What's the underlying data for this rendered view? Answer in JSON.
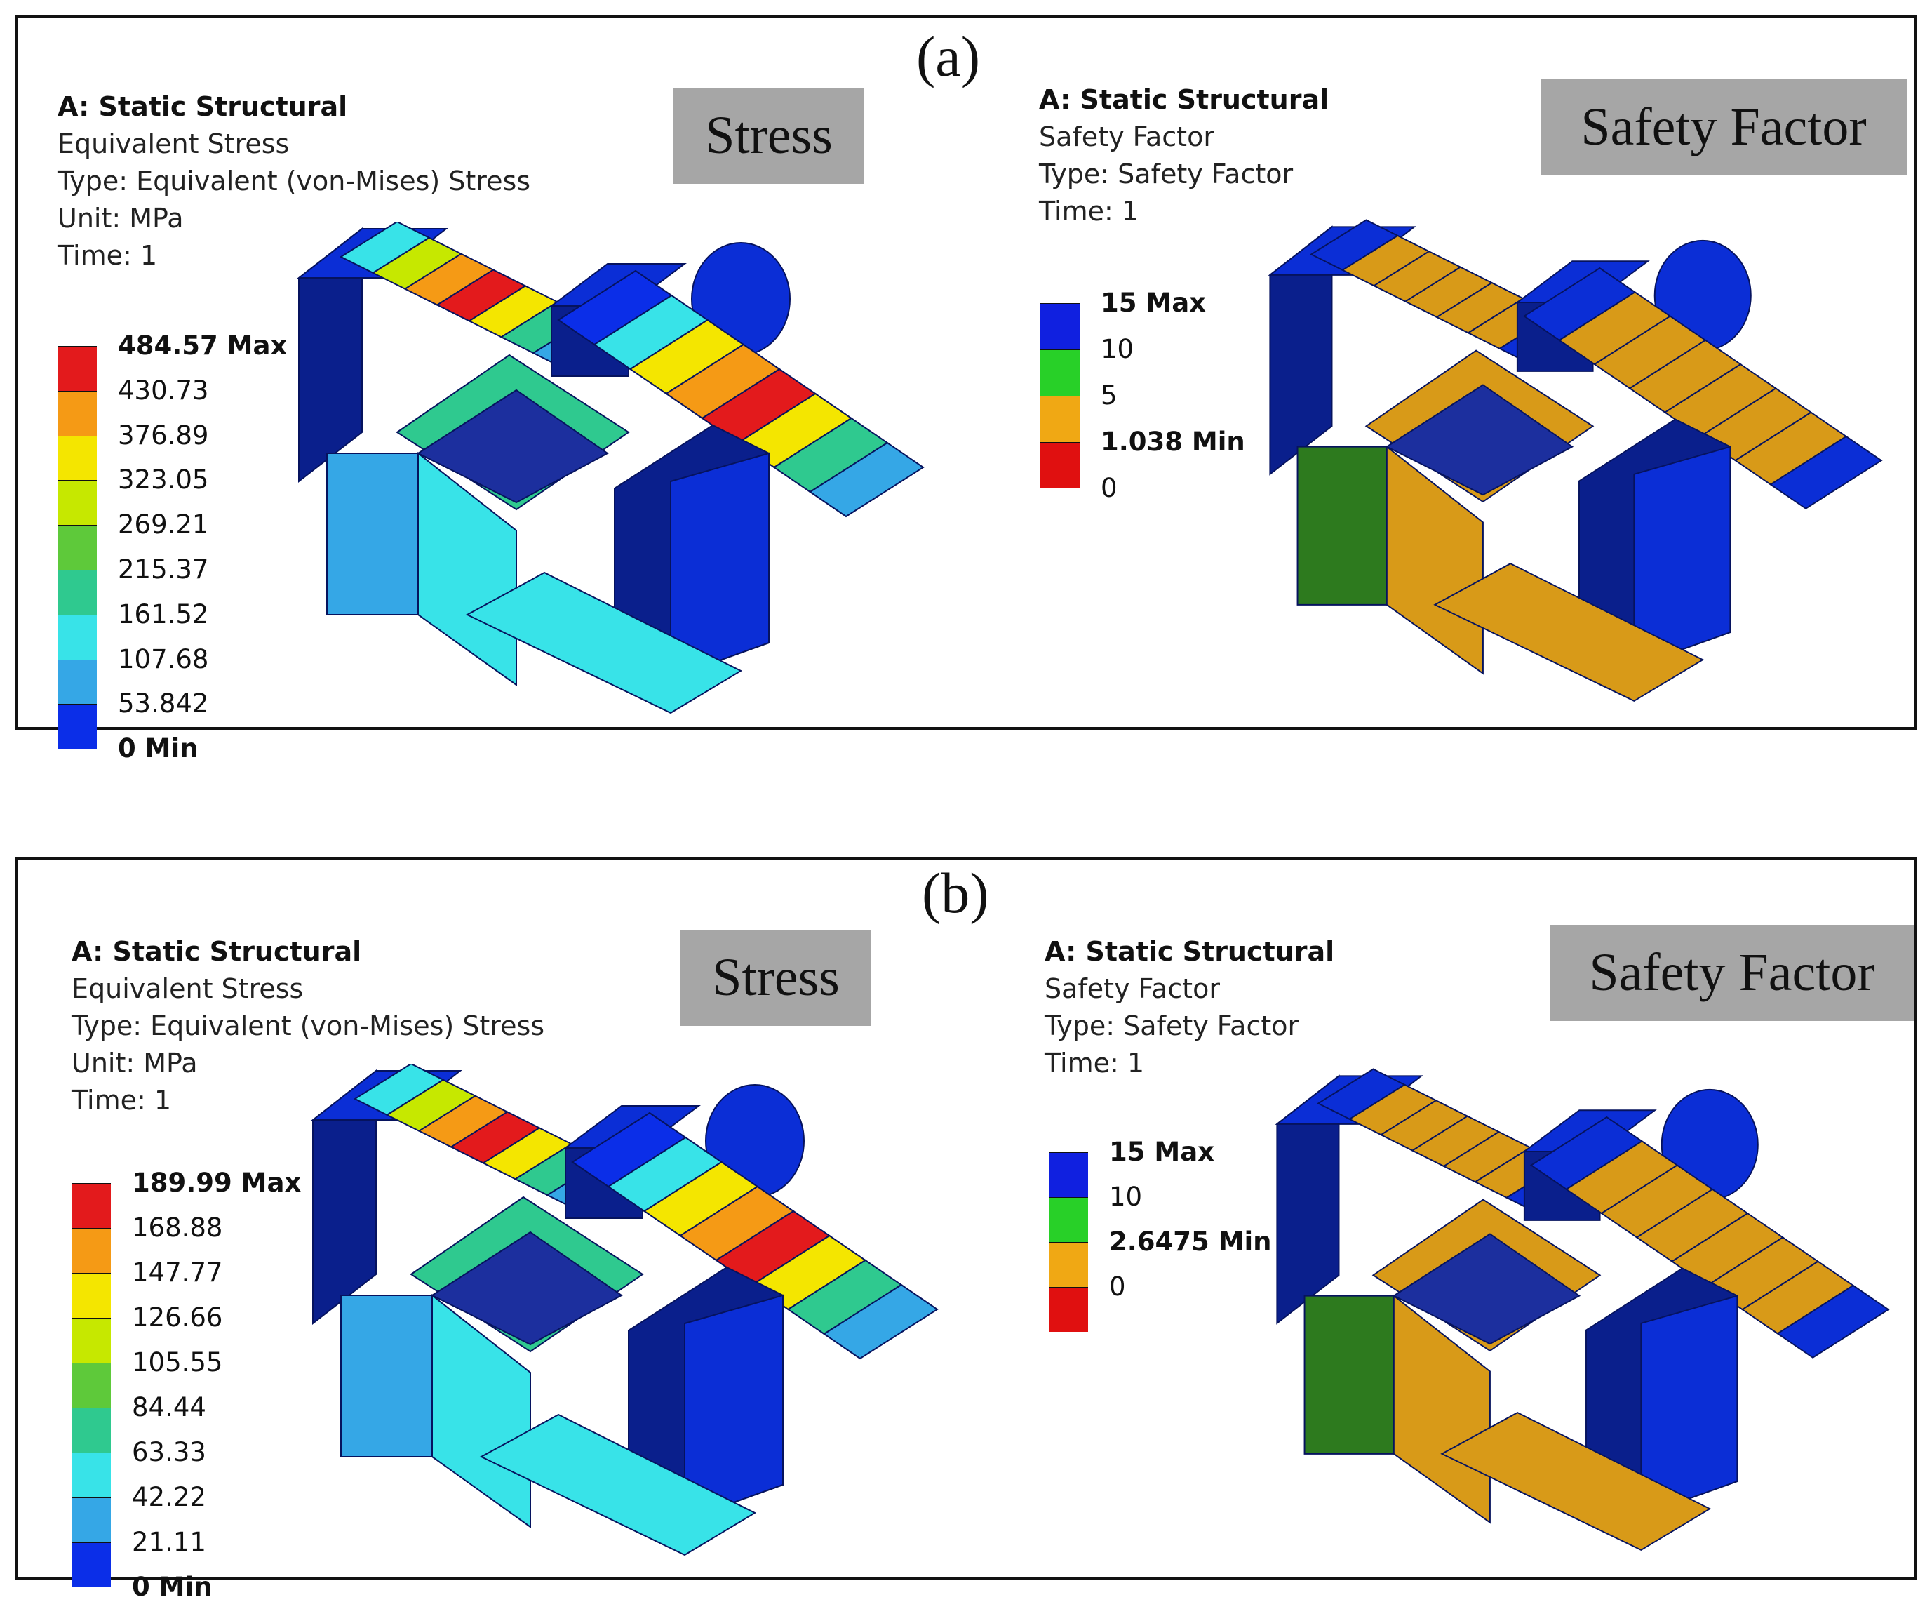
{
  "panels": [
    {
      "label": "(a)",
      "left": {
        "info": [
          "A: Static Structural",
          "Equivalent Stress",
          "Type: Equivalent (von-Mises) Stress",
          "Unit: MPa",
          "Time: 1"
        ],
        "badge": "Stress",
        "legend": [
          "484.57 Max",
          "430.73",
          "376.89",
          "323.05",
          "269.21",
          "215.37",
          "161.52",
          "107.68",
          "53.842",
          "0 Min"
        ]
      },
      "right": {
        "info": [
          "A: Static Structural",
          "Safety Factor",
          "Type: Safety Factor",
          "Time: 1"
        ],
        "badge": "Safety Factor",
        "legend": [
          "15 Max",
          "10",
          "5",
          "1.038 Min",
          "0"
        ]
      }
    },
    {
      "label": "(b)",
      "left": {
        "info": [
          "A: Static Structural",
          "Equivalent Stress",
          "Type: Equivalent (von-Mises) Stress",
          "Unit: MPa",
          "Time: 1"
        ],
        "badge": "Stress",
        "legend": [
          "189.99 Max",
          "168.88",
          "147.77",
          "126.66",
          "105.55",
          "84.44",
          "63.33",
          "42.22",
          "21.11",
          "0 Min"
        ]
      },
      "right": {
        "info": [
          "A: Static Structural",
          "Safety Factor",
          "Type: Safety Factor",
          "Time: 1"
        ],
        "badge": "Safety Factor",
        "legend": [
          "15 Max",
          "10",
          "2.6475 Min",
          "0"
        ]
      }
    }
  ],
  "colors": {
    "stress_scale": [
      "#e31a1c",
      "#f59a15",
      "#f4e600",
      "#c6e800",
      "#5ec93a",
      "#2fc98f",
      "#38e3e8",
      "#35a7e6",
      "#0b2ee8"
    ],
    "safety_scale_a": [
      "#1020e0",
      "#28d028",
      "#f0a814",
      "#e01010"
    ],
    "safety_scale_b": [
      "#1020e0",
      "#28d028",
      "#f0a814",
      "#e01010"
    ],
    "model_dark": "#0a1f8c",
    "model_blue": "#0b2ed6",
    "model_orange": "#d89a18"
  }
}
